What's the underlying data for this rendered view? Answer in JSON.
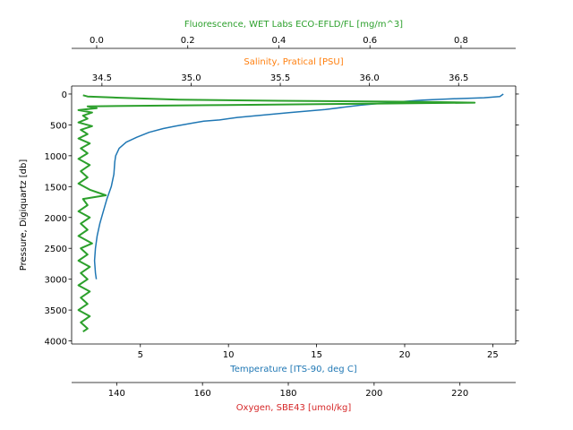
{
  "chart_data": {
    "type": "line",
    "y_axis": {
      "label": "Pressure, Digiquartz [db]",
      "range": [
        4050,
        -130
      ],
      "ticks": [
        0,
        500,
        1000,
        1500,
        2000,
        2500,
        3000,
        3500,
        4000
      ],
      "inverted": true
    },
    "axes": [
      {
        "id": "temperature",
        "position": "bottom",
        "label": "Temperature [ITS-90, deg C]",
        "color": "#1f77b4",
        "range": [
          1.1,
          26.3
        ],
        "ticks": [
          5,
          10,
          15,
          20,
          25
        ]
      },
      {
        "id": "oxygen",
        "position": "bottom-offset",
        "label": "Oxygen, SBE43 [umol/kg]",
        "color": "#d62728",
        "range": [
          129.5,
          233
        ],
        "ticks": [
          140,
          160,
          180,
          200,
          220
        ]
      },
      {
        "id": "fluorescence",
        "position": "top-offset",
        "label": "Fluorescence, WET Labs ECO-EFLD/FL [mg/m^3]",
        "color": "#2ca02c",
        "range": [
          -0.055,
          0.92
        ],
        "ticks": [
          0.0,
          0.2,
          0.4,
          0.6,
          0.8
        ],
        "tick_labels": [
          "0.0",
          "0.2",
          "0.4",
          "0.6",
          "0.8"
        ]
      },
      {
        "id": "salinity",
        "position": "top",
        "label": "Salinity, Pratical [PSU]",
        "color": "#ff7f0e",
        "range": [
          34.33,
          36.82
        ],
        "ticks": [
          34.5,
          35.0,
          35.5,
          36.0,
          36.5
        ],
        "tick_labels": [
          "34.5",
          "35.0",
          "35.5",
          "36.0",
          "36.5"
        ]
      }
    ],
    "series": [
      {
        "name": "Temperature [ITS-90, deg C]",
        "axis": "temperature",
        "color": "#1f77b4",
        "points": [
          [
            25.6,
            0
          ],
          [
            25.4,
            40
          ],
          [
            24.5,
            60
          ],
          [
            23.0,
            75
          ],
          [
            21.0,
            100
          ],
          [
            19.5,
            130
          ],
          [
            17.5,
            180
          ],
          [
            15.5,
            250
          ],
          [
            13.5,
            300
          ],
          [
            12.0,
            340
          ],
          [
            10.5,
            380
          ],
          [
            9.5,
            420
          ],
          [
            8.6,
            440
          ],
          [
            8.0,
            470
          ],
          [
            7.0,
            520
          ],
          [
            6.3,
            560
          ],
          [
            5.5,
            620
          ],
          [
            4.8,
            700
          ],
          [
            4.2,
            780
          ],
          [
            3.8,
            880
          ],
          [
            3.6,
            1000
          ],
          [
            3.55,
            1100
          ],
          [
            3.5,
            1300
          ],
          [
            3.35,
            1500
          ],
          [
            3.1,
            1700
          ],
          [
            2.9,
            1900
          ],
          [
            2.7,
            2100
          ],
          [
            2.55,
            2300
          ],
          [
            2.45,
            2500
          ],
          [
            2.4,
            2700
          ],
          [
            2.45,
            2900
          ],
          [
            2.5,
            3000
          ]
        ]
      },
      {
        "name": "Fluorescence, WET Labs ECO-EFLD/FL [mg/m^3]",
        "axis": "fluorescence",
        "color": "#2ca02c",
        "points": [
          [
            -0.03,
            20
          ],
          [
            -0.02,
            40
          ],
          [
            0.05,
            60
          ],
          [
            0.18,
            90
          ],
          [
            0.4,
            110
          ],
          [
            0.7,
            125
          ],
          [
            0.83,
            140
          ],
          [
            0.55,
            160
          ],
          [
            0.25,
            180
          ],
          [
            -0.02,
            200
          ],
          [
            0.0,
            230
          ],
          [
            -0.04,
            260
          ],
          [
            -0.01,
            300
          ],
          [
            -0.03,
            350
          ],
          [
            -0.02,
            400
          ],
          [
            -0.04,
            460
          ],
          [
            -0.01,
            520
          ],
          [
            -0.035,
            580
          ],
          [
            -0.02,
            650
          ],
          [
            -0.04,
            720
          ],
          [
            -0.015,
            800
          ],
          [
            -0.035,
            880
          ],
          [
            -0.02,
            960
          ],
          [
            -0.04,
            1050
          ],
          [
            -0.015,
            1150
          ],
          [
            -0.035,
            1250
          ],
          [
            -0.02,
            1350
          ],
          [
            -0.04,
            1450
          ],
          [
            -0.015,
            1550
          ],
          [
            0.02,
            1640
          ],
          [
            -0.03,
            1700
          ],
          [
            -0.02,
            1800
          ],
          [
            -0.04,
            1900
          ],
          [
            -0.015,
            2000
          ],
          [
            -0.035,
            2100
          ],
          [
            -0.02,
            2200
          ],
          [
            -0.04,
            2300
          ],
          [
            -0.01,
            2420
          ],
          [
            -0.035,
            2500
          ],
          [
            -0.02,
            2600
          ],
          [
            -0.04,
            2700
          ],
          [
            -0.015,
            2800
          ],
          [
            -0.035,
            2900
          ],
          [
            -0.02,
            3000
          ],
          [
            -0.04,
            3100
          ],
          [
            -0.015,
            3200
          ],
          [
            -0.035,
            3300
          ],
          [
            -0.02,
            3400
          ],
          [
            -0.04,
            3500
          ],
          [
            -0.015,
            3600
          ],
          [
            -0.035,
            3700
          ],
          [
            -0.02,
            3800
          ],
          [
            -0.03,
            3850
          ]
        ]
      }
    ],
    "grid": false
  }
}
